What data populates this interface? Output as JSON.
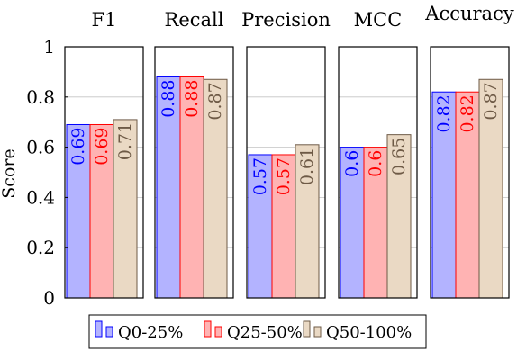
{
  "chart_data": {
    "type": "bar",
    "ylabel": "Score",
    "ylim": [
      0,
      1
    ],
    "yticks": [
      "0",
      "0.2",
      "0.4",
      "0.6",
      "0.8",
      "1"
    ],
    "grid": true,
    "legend_position": "bottom",
    "panels": [
      "F1",
      "Recall",
      "Precision",
      "MCC",
      "Accuracy"
    ],
    "series": [
      {
        "name": "Q0-25%",
        "values": [
          0.69,
          0.88,
          0.57,
          0.6,
          0.82
        ],
        "labels": [
          "0.69",
          "0.88",
          "0.57",
          "0.6",
          "0.82"
        ],
        "fill": "#b3b3ff",
        "stroke": "#0000ff",
        "text": "#0000ff"
      },
      {
        "name": "Q25-50%",
        "values": [
          0.69,
          0.88,
          0.57,
          0.6,
          0.82
        ],
        "labels": [
          "0.69",
          "0.88",
          "0.57",
          "0.6",
          "0.82"
        ],
        "fill": "#ffb3b3",
        "stroke": "#ff0000",
        "text": "#ff0000"
      },
      {
        "name": "Q50-100%",
        "values": [
          0.71,
          0.87,
          0.61,
          0.65,
          0.87
        ],
        "labels": [
          "0.71",
          "0.87",
          "0.61",
          "0.65",
          "0.87"
        ],
        "fill": "#ead9c4",
        "stroke": "#6e5a46",
        "text": "#6e5a46"
      }
    ]
  }
}
